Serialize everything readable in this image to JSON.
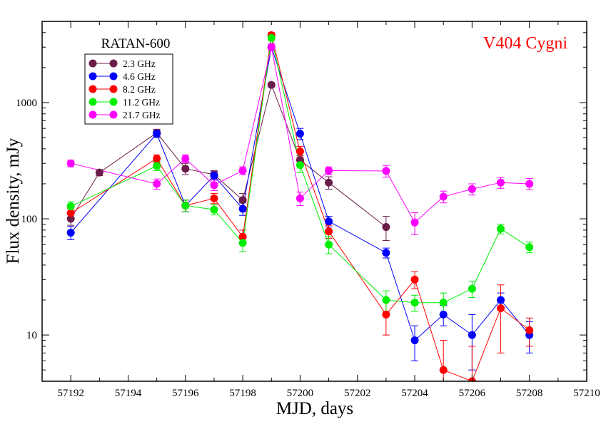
{
  "chart_data": {
    "type": "scatter",
    "title": "V404 Cygni",
    "title_color": "#ff0000",
    "subtitle": "RATAN-600",
    "xlabel": "MJD, days",
    "ylabel": "Flux density, mJy",
    "xlim": [
      57191,
      57210
    ],
    "ylim": [
      4,
      5000
    ],
    "yscale": "log",
    "x_tick_labels": [
      "57192",
      "57194",
      "57196",
      "57198",
      "57200",
      "57202",
      "57204",
      "57206",
      "57208",
      "57210"
    ],
    "y_tick_labels": [
      "10",
      "100",
      "1000"
    ],
    "legend_position": "top-left",
    "grid": false,
    "series": [
      {
        "name": "2.3 GHz",
        "color": "#6b1d4a",
        "points": [
          {
            "x": 57192,
            "y": 100,
            "err": 12
          },
          {
            "x": 57193,
            "y": 250,
            "err": 15
          },
          {
            "x": 57195,
            "y": 550,
            "err": 40
          },
          {
            "x": 57196,
            "y": 270,
            "err": 30
          },
          {
            "x": 57197,
            "y": 240,
            "err": 20
          },
          {
            "x": 57198,
            "y": 145,
            "err": 20
          },
          {
            "x": 57199,
            "y": 1420,
            "err": 60
          },
          {
            "x": 57200,
            "y": 320,
            "err": 30
          },
          {
            "x": 57201,
            "y": 205,
            "err": 25
          },
          {
            "x": 57203,
            "y": 85,
            "err": 20
          }
        ]
      },
      {
        "name": "4.6 GHz",
        "color": "#0000ff",
        "points": [
          {
            "x": 57192,
            "y": 76,
            "err": 10
          },
          {
            "x": 57195,
            "y": 540,
            "err": 40
          },
          {
            "x": 57196,
            "y": 130,
            "err": 15
          },
          {
            "x": 57197,
            "y": 235,
            "err": 20
          },
          {
            "x": 57198,
            "y": 122,
            "err": 15
          },
          {
            "x": 57199,
            "y": 3000,
            "err": 200
          },
          {
            "x": 57200,
            "y": 540,
            "err": 60
          },
          {
            "x": 57201,
            "y": 95,
            "err": 10
          },
          {
            "x": 57203,
            "y": 51,
            "err": 5
          },
          {
            "x": 57204,
            "y": 9,
            "err": 3
          },
          {
            "x": 57205,
            "y": 15,
            "err": 3
          },
          {
            "x": 57206,
            "y": 10,
            "err": 5
          },
          {
            "x": 57207,
            "y": 20,
            "err": 3
          },
          {
            "x": 57208,
            "y": 10,
            "err": 3
          }
        ]
      },
      {
        "name": "8.2 GHz",
        "color": "#ff0000",
        "points": [
          {
            "x": 57192,
            "y": 112,
            "err": 10
          },
          {
            "x": 57195,
            "y": 330,
            "err": 25
          },
          {
            "x": 57196,
            "y": 130,
            "err": 15
          },
          {
            "x": 57197,
            "y": 150,
            "err": 15
          },
          {
            "x": 57198,
            "y": 70,
            "err": 10
          },
          {
            "x": 57199,
            "y": 3800,
            "err": 200
          },
          {
            "x": 57200,
            "y": 380,
            "err": 40
          },
          {
            "x": 57201,
            "y": 78,
            "err": 10
          },
          {
            "x": 57203,
            "y": 15,
            "err": 5
          },
          {
            "x": 57204,
            "y": 30,
            "err": 5
          },
          {
            "x": 57205,
            "y": 5,
            "err": 4
          },
          {
            "x": 57206,
            "y": 4,
            "err": 4
          },
          {
            "x": 57207,
            "y": 17,
            "err": 10
          },
          {
            "x": 57208,
            "y": 11,
            "err": 3
          }
        ]
      },
      {
        "name": "11.2 GHz",
        "color": "#00ee00",
        "points": [
          {
            "x": 57192,
            "y": 128,
            "err": 12
          },
          {
            "x": 57195,
            "y": 285,
            "err": 25
          },
          {
            "x": 57196,
            "y": 130,
            "err": 15
          },
          {
            "x": 57197,
            "y": 120,
            "err": 12
          },
          {
            "x": 57198,
            "y": 62,
            "err": 10
          },
          {
            "x": 57199,
            "y": 3600,
            "err": 200
          },
          {
            "x": 57200,
            "y": 290,
            "err": 40
          },
          {
            "x": 57201,
            "y": 60,
            "err": 10
          },
          {
            "x": 57203,
            "y": 20,
            "err": 4
          },
          {
            "x": 57204,
            "y": 19,
            "err": 3
          },
          {
            "x": 57205,
            "y": 19,
            "err": 4
          },
          {
            "x": 57206,
            "y": 25,
            "err": 4
          },
          {
            "x": 57207,
            "y": 82,
            "err": 8
          },
          {
            "x": 57208,
            "y": 57,
            "err": 6
          }
        ]
      },
      {
        "name": "21.7 GHz",
        "color": "#ff00ff",
        "points": [
          {
            "x": 57192,
            "y": 300,
            "err": 20
          },
          {
            "x": 57195,
            "y": 200,
            "err": 20
          },
          {
            "x": 57196,
            "y": 330,
            "err": 25
          },
          {
            "x": 57197,
            "y": 195,
            "err": 20
          },
          {
            "x": 57198,
            "y": 260,
            "err": 20
          },
          {
            "x": 57199,
            "y": 3000,
            "err": 200
          },
          {
            "x": 57200,
            "y": 150,
            "err": 20
          },
          {
            "x": 57201,
            "y": 260,
            "err": 20
          },
          {
            "x": 57203,
            "y": 258,
            "err": 30
          },
          {
            "x": 57204,
            "y": 93,
            "err": 20
          },
          {
            "x": 57205,
            "y": 155,
            "err": 18
          },
          {
            "x": 57206,
            "y": 180,
            "err": 20
          },
          {
            "x": 57207,
            "y": 205,
            "err": 22
          },
          {
            "x": 57208,
            "y": 200,
            "err": 22
          }
        ]
      }
    ]
  }
}
